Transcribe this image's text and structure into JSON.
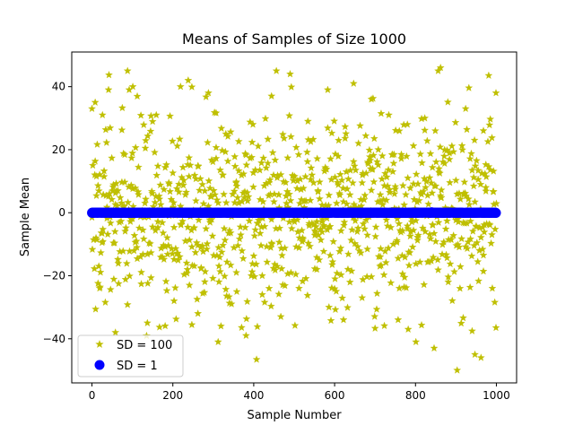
{
  "chart_data": {
    "type": "scatter",
    "title": "Means of Samples of Size 1000",
    "xlabel": "Sample Number",
    "ylabel": "Sample Mean",
    "xlim": [
      -50,
      1050
    ],
    "ylim": [
      -54,
      51
    ],
    "xticks": [
      0,
      200,
      400,
      600,
      800,
      1000
    ],
    "yticks": [
      -40,
      -20,
      0,
      20,
      40
    ],
    "legend_position": "lower-left",
    "series": [
      {
        "name": "SD = 100",
        "marker": "star",
        "color": "#bfbf00",
        "count": 1000,
        "x": [
          0,
          2,
          8,
          17,
          26,
          41,
          58,
          92,
          101,
          137,
          159,
          203,
          219,
          238,
          262,
          288,
          312,
          331,
          357,
          381,
          398,
          421,
          444,
          467,
          490,
          512,
          534,
          556,
          583,
          601,
          622,
          647,
          668,
          691,
          712,
          734,
          757,
          780,
          801,
          823,
          846,
          862,
          881,
          903,
          924,
          947,
          968,
          990,
          999
        ],
        "y": [
          33,
          15,
          35,
          -17,
          31,
          39,
          -38,
          39,
          40,
          -35,
          31,
          -28,
          40,
          42,
          -32,
          38,
          -41,
          25,
          -19,
          -39,
          28,
          -26,
          37,
          -33,
          44,
          -24,
          29,
          -18,
          39,
          -21,
          -34,
          41,
          -27,
          36,
          -17,
          31,
          -34,
          28,
          -41,
          30,
          -43,
          46,
          -22,
          -50,
          33,
          -45,
          26,
          -24,
          38
        ]
      },
      {
        "name": "SD = 1",
        "marker": "circle",
        "color": "#0000ff",
        "count": 1000,
        "y_value": 0
      }
    ]
  }
}
